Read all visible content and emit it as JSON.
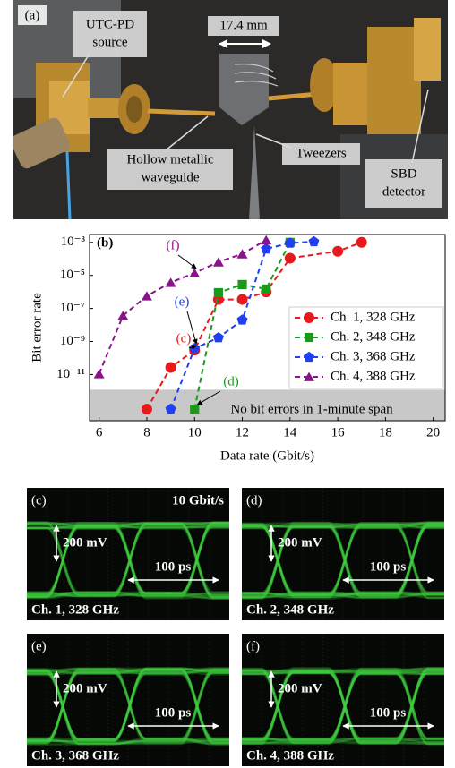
{
  "photo": {
    "panel_label": "(a)",
    "labels": [
      {
        "lines": [
          "UTC-PD",
          "source"
        ]
      },
      {
        "lines": [
          "17.4 mm"
        ]
      },
      {
        "lines": [
          "Hollow metallic",
          "waveguide"
        ]
      },
      {
        "lines": [
          "Tweezers"
        ]
      },
      {
        "lines": [
          "SBD",
          "detector"
        ]
      }
    ]
  },
  "chart_data": {
    "type": "line",
    "panel_label": "(b)",
    "x_label": "Data rate (Gbit/s)",
    "y_label": "Bit error rate",
    "log_y": true,
    "xlim": [
      5.6,
      20.5
    ],
    "ylim": [
      1.6e-14,
      0.003
    ],
    "xticks": [
      6,
      8,
      10,
      12,
      14,
      16,
      18,
      20
    ],
    "yticks": [
      {
        "value": 1e-11,
        "label": "10⁻¹¹"
      },
      {
        "value": 1e-09,
        "label": "10⁻⁹"
      },
      {
        "value": 1e-07,
        "label": "10⁻⁷"
      },
      {
        "value": 1e-05,
        "label": "10⁻⁵"
      },
      {
        "value": 0.001,
        "label": "10⁻³"
      }
    ],
    "shaded_region": {
      "ylim": [
        1.6e-14,
        1.2e-12
      ],
      "label": "No bit errors in 1-minute span",
      "color": "#c8c8c8"
    },
    "legend": "lower right",
    "series": [
      {
        "name": "Ch. 1, 328 GHz",
        "color": "#e8191c",
        "marker": "circle",
        "x": [
          8,
          9,
          10,
          11,
          12,
          13,
          14,
          16,
          17
        ],
        "values": [
          8e-14,
          2.7e-11,
          3e-10,
          3.5e-07,
          3.5e-07,
          1e-06,
          0.00011,
          0.00029,
          0.001
        ]
      },
      {
        "name": "Ch. 2, 348 GHz",
        "color": "#1a9a1a",
        "marker": "square",
        "x": [
          10,
          11,
          12,
          13,
          14
        ],
        "values": [
          8e-14,
          9e-07,
          2.8e-06,
          1.5e-06,
          0.001
        ]
      },
      {
        "name": "Ch. 3, 368 GHz",
        "color": "#1f3ff0",
        "marker": "pentagon",
        "x": [
          9,
          10,
          11,
          12,
          13,
          14,
          15
        ],
        "values": [
          8e-14,
          3.8e-10,
          1.7e-09,
          2e-08,
          0.0004,
          0.0009,
          0.0011
        ]
      },
      {
        "name": "Ch. 4, 388 GHz",
        "color": "#8a138a",
        "marker": "triangle",
        "x": [
          6,
          7,
          8,
          9,
          10,
          11,
          12,
          13
        ],
        "values": [
          1.1e-11,
          3.7e-08,
          5.7e-07,
          3.7e-06,
          1.4e-05,
          6.5e-05,
          0.0002,
          0.0014
        ]
      }
    ],
    "annotations": [
      {
        "text": "(c)",
        "color": "#e8191c"
      },
      {
        "text": "(d)",
        "color": "#1a9a1a"
      },
      {
        "text": "(e)",
        "color": "#1f3ff0"
      },
      {
        "text": "(f)",
        "color": "#8a138a"
      }
    ]
  },
  "eye_diagrams": {
    "rate_label": "10 Gbit/s",
    "panels": [
      {
        "panel_label": "(c)",
        "channel": "Ch. 1, 328 GHz",
        "voltage_scale": "200 mV",
        "time_scale": "100 ps"
      },
      {
        "panel_label": "(d)",
        "channel": "Ch. 2, 348 GHz",
        "voltage_scale": "200 mV",
        "time_scale": "100 ps"
      },
      {
        "panel_label": "(e)",
        "channel": "Ch. 3, 368 GHz",
        "voltage_scale": "200 mV",
        "time_scale": "100 ps"
      },
      {
        "panel_label": "(f)",
        "channel": "Ch. 4, 388 GHz",
        "voltage_scale": "200 mV",
        "time_scale": "100 ps"
      }
    ]
  }
}
